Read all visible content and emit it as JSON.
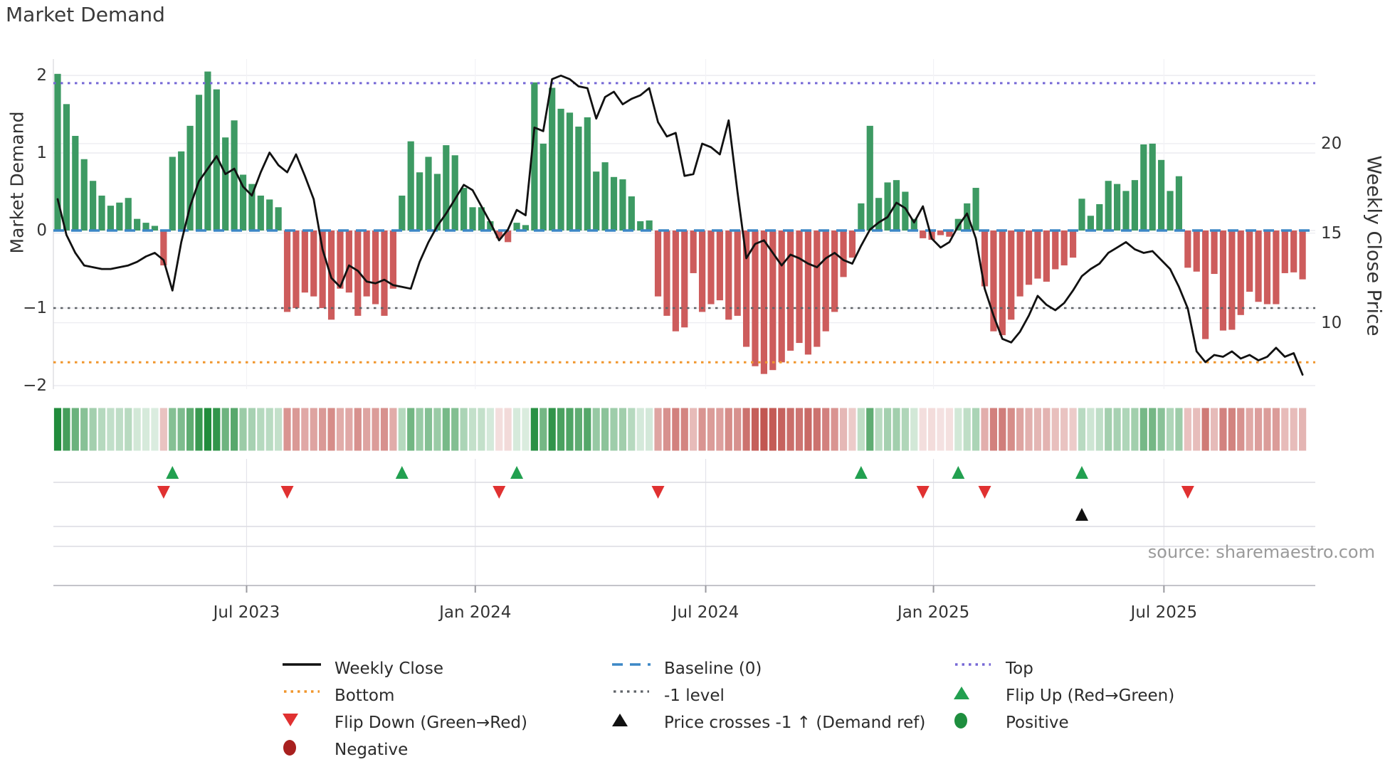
{
  "title": "Market Demand",
  "source_note": "source: sharemaestro.com",
  "axes": {
    "left_title": "Market Demand",
    "right_title": "Weekly Close Price",
    "left_ticks": [
      {
        "label": "2",
        "value": 2
      },
      {
        "label": "1",
        "value": 1
      },
      {
        "label": "0",
        "value": 0
      },
      {
        "label": "−1",
        "value": -1
      },
      {
        "label": "−2",
        "value": -2
      }
    ],
    "right_ticks": [
      {
        "label": "20",
        "value": 20
      },
      {
        "label": "15",
        "value": 15
      },
      {
        "label": "10",
        "value": 10
      }
    ],
    "x_ticks": [
      {
        "label": "Jul 2023",
        "week": 21.4
      },
      {
        "label": "Jan 2024",
        "week": 47.3
      },
      {
        "label": "Jul 2024",
        "week": 73.4
      },
      {
        "label": "Jan 2025",
        "week": 99.2
      },
      {
        "label": "Jul 2025",
        "week": 125.3
      }
    ]
  },
  "chart_data": {
    "type": "bar+line+heatmap+event-markers",
    "title": "Market Demand",
    "x_unit": "week",
    "ylabel": "Market Demand",
    "ylabel_right": "Weekly Close Price",
    "ylim_demand": [
      -2.1,
      2.2
    ],
    "grid": true,
    "legend_position": "bottom",
    "demand_bars": [
      2.02,
      1.63,
      1.22,
      0.92,
      0.64,
      0.45,
      0.32,
      0.36,
      0.42,
      0.15,
      0.1,
      0.06,
      -0.45,
      0.95,
      1.02,
      1.35,
      1.75,
      2.05,
      1.82,
      1.2,
      1.42,
      0.72,
      0.6,
      0.45,
      0.4,
      0.3,
      -1.05,
      -1.0,
      -0.8,
      -0.85,
      -1.0,
      -1.15,
      -0.75,
      -0.8,
      -1.1,
      -0.85,
      -0.95,
      -1.1,
      -0.75,
      0.45,
      1.15,
      0.75,
      0.95,
      0.73,
      1.1,
      0.97,
      0.55,
      0.3,
      0.3,
      0.12,
      -0.1,
      -0.15,
      0.1,
      0.07,
      1.91,
      1.12,
      1.84,
      1.57,
      1.52,
      1.34,
      1.46,
      0.76,
      0.88,
      0.69,
      0.66,
      0.44,
      0.12,
      0.13,
      -0.85,
      -1.1,
      -1.3,
      -1.25,
      -0.55,
      -1.05,
      -0.95,
      -0.9,
      -1.15,
      -1.1,
      -1.5,
      -1.75,
      -1.85,
      -1.8,
      -1.7,
      -1.55,
      -1.45,
      -1.6,
      -1.5,
      -1.3,
      -1.05,
      -0.6,
      -0.35,
      0.35,
      1.35,
      0.42,
      0.62,
      0.65,
      0.5,
      0.15,
      -0.1,
      -0.12,
      -0.06,
      -0.08,
      0.15,
      0.35,
      0.55,
      -0.72,
      -1.3,
      -1.35,
      -1.15,
      -0.85,
      -0.7,
      -0.62,
      -0.66,
      -0.5,
      -0.45,
      -0.35,
      0.41,
      0.19,
      0.34,
      0.64,
      0.6,
      0.51,
      0.65,
      1.11,
      1.12,
      0.91,
      0.51,
      0.7,
      -0.48,
      -0.53,
      -1.4,
      -0.56,
      -1.29,
      -1.28,
      -1.09,
      -0.79,
      -0.92,
      -0.95,
      -0.95,
      -0.55,
      -0.54,
      -0.63
    ],
    "weekly_close": [
      16.9,
      14.9,
      13.9,
      13.2,
      13.1,
      13.0,
      13.0,
      13.1,
      13.2,
      13.4,
      13.7,
      13.9,
      13.5,
      11.8,
      14.5,
      16.5,
      17.9,
      18.6,
      19.3,
      18.3,
      18.6,
      17.6,
      17.1,
      18.4,
      19.5,
      18.8,
      18.4,
      19.4,
      18.2,
      16.9,
      14.1,
      12.5,
      12.0,
      13.2,
      12.9,
      12.3,
      12.2,
      12.4,
      12.1,
      12.0,
      11.9,
      13.4,
      14.5,
      15.4,
      16.1,
      16.9,
      17.7,
      17.4,
      16.5,
      15.6,
      14.6,
      15.2,
      16.3,
      16.0,
      20.9,
      20.7,
      23.6,
      23.8,
      23.6,
      23.2,
      23.1,
      21.4,
      22.6,
      22.9,
      22.2,
      22.5,
      22.7,
      23.1,
      21.2,
      20.4,
      20.6,
      18.2,
      18.3,
      20.0,
      19.8,
      19.4,
      21.3,
      17.3,
      13.6,
      14.4,
      14.6,
      13.9,
      13.2,
      13.8,
      13.6,
      13.3,
      13.1,
      13.6,
      13.9,
      13.5,
      13.3,
      14.3,
      15.2,
      15.6,
      15.9,
      16.7,
      16.4,
      15.6,
      16.5,
      14.7,
      14.2,
      14.5,
      15.4,
      16.1,
      14.7,
      11.9,
      10.4,
      9.1,
      8.9,
      9.5,
      10.4,
      11.5,
      11.0,
      10.7,
      11.1,
      11.8,
      12.6,
      13.0,
      13.3,
      13.9,
      14.2,
      14.5,
      14.1,
      13.9,
      14.0,
      13.5,
      13.0,
      12.0,
      10.8,
      8.4,
      7.8,
      8.2,
      8.1,
      8.4,
      8.0,
      8.2,
      7.9,
      8.1,
      8.6,
      8.1,
      8.3,
      7.1
    ],
    "levels": {
      "top": 1.9,
      "baseline": 0,
      "minus1": -1,
      "bottom": -1.7
    },
    "right_axis_price_at_zero_demand": 15.15,
    "price_units_per_demand_unit": 4.33,
    "markers": {
      "flip_up_weeks": [
        13,
        39,
        52,
        91,
        102,
        116
      ],
      "flip_down_weeks": [
        12,
        26,
        50,
        68,
        98,
        105,
        128
      ],
      "price_cross_weeks": [
        116
      ]
    }
  },
  "colors": {
    "positive_bar": "#3d9a63",
    "negative_bar": "#cd5c5c",
    "price_line": "#111111",
    "top_level": "#7668d6",
    "baseline": "#3c87c6",
    "minus1_level": "#5f6368",
    "bottom_level": "#f0962d",
    "flip_up_marker": "#22a050",
    "flip_down_marker": "#e03131",
    "price_cross_marker": "#111111",
    "positive_dot": "#1e8e3e",
    "negative_dot": "#a8201f",
    "heat_positive": "#218c3c",
    "heat_negative": "#be4b46",
    "grid": "#ececf1",
    "axis_line": "#c4c4ca"
  },
  "legend": {
    "items": [
      {
        "label": "Weekly Close",
        "type": "line-black"
      },
      {
        "label": "Baseline (0)",
        "type": "dash-blue"
      },
      {
        "label": "Top",
        "type": "dot-purple"
      },
      {
        "label": "Bottom",
        "type": "dot-orange"
      },
      {
        "label": "-1 level",
        "type": "dot-gray"
      },
      {
        "label": "Flip Up (Red→Green)",
        "type": "tri-up-green"
      },
      {
        "label": "Flip Down (Green→Red)",
        "type": "tri-down-red"
      },
      {
        "label": "Price crosses -1 ↑ (Demand ref)",
        "type": "tri-up-black"
      },
      {
        "label": "Positive",
        "type": "circle-green"
      },
      {
        "label": "Negative",
        "type": "circle-darkred"
      }
    ]
  }
}
